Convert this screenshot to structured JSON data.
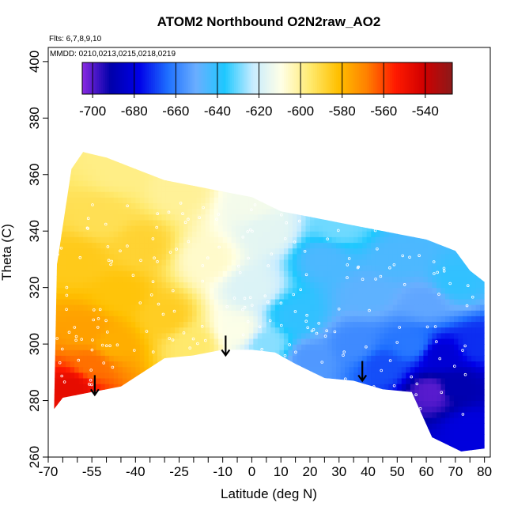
{
  "chart_data": {
    "type": "heatmap",
    "title": "ATOM2 Northbound O2N2raw_AO2",
    "flights_note": "Flts: 6,7,8,9,10",
    "dates_note": "MMDD: 0210,0213,0215,0218,0219",
    "xlabel": "Latitude (deg N)",
    "ylabel": "Theta (C)",
    "xlim": [
      -70,
      82
    ],
    "ylim": [
      260,
      405
    ],
    "x_ticks": [
      -70,
      -55,
      -40,
      -25,
      -10,
      0,
      10,
      20,
      30,
      40,
      50,
      60,
      70,
      80
    ],
    "x_tick_labels": [
      "-70",
      "-55",
      "-40",
      "-25",
      "-10",
      "0",
      "10",
      "20",
      "30",
      "40",
      "50",
      "60",
      "70",
      "80"
    ],
    "x_minor_ticks": [
      -65,
      -60,
      -50,
      -45,
      -35,
      -30,
      -20,
      -15,
      -5,
      5,
      15,
      25,
      35,
      45,
      55,
      65,
      75
    ],
    "y_ticks": [
      260,
      280,
      300,
      320,
      340,
      360,
      380,
      400
    ],
    "y_tick_labels": [
      "260",
      "280",
      "300",
      "320",
      "340",
      "360",
      "380",
      "400"
    ],
    "colorbar": {
      "range": [
        -705,
        -527
      ],
      "ticks": [
        -700,
        -680,
        -660,
        -640,
        -620,
        -600,
        -580,
        -560,
        -540
      ],
      "tick_labels": [
        "-700",
        "-680",
        "-660",
        "-640",
        "-620",
        "-600",
        "-580",
        "-560",
        "-540"
      ],
      "colors": [
        "#8a2be2",
        "#0000aa",
        "#0000e8",
        "#1e6fff",
        "#6aaeff",
        "#1ec8ff",
        "#c8ecff",
        "#ffffe6",
        "#ffea70",
        "#ffc000",
        "#ff8000",
        "#ff1a00",
        "#d00000",
        "#8b1a1a"
      ]
    },
    "field_outline": {
      "top": [
        [
          -67,
          328
        ],
        [
          -62,
          362
        ],
        [
          -58,
          368
        ],
        [
          -50,
          366
        ],
        [
          -40,
          362
        ],
        [
          -30,
          358
        ],
        [
          -20,
          356
        ],
        [
          -10,
          354
        ],
        [
          0,
          352
        ],
        [
          10,
          347
        ],
        [
          20,
          345
        ],
        [
          30,
          343
        ],
        [
          40,
          341
        ],
        [
          50,
          339
        ],
        [
          60,
          337
        ],
        [
          70,
          333
        ],
        [
          75,
          326
        ],
        [
          80,
          322
        ]
      ],
      "bottom": [
        [
          80,
          263
        ],
        [
          72,
          262
        ],
        [
          62,
          267
        ],
        [
          55,
          283
        ],
        [
          45,
          284
        ],
        [
          35,
          287
        ],
        [
          25,
          288
        ],
        [
          15,
          293
        ],
        [
          8,
          297
        ],
        [
          0,
          298
        ],
        [
          -10,
          298
        ],
        [
          -20,
          296
        ],
        [
          -30,
          295
        ],
        [
          -45,
          285
        ],
        [
          -55,
          283
        ],
        [
          -65,
          281
        ],
        [
          -68,
          277
        ]
      ]
    },
    "field_samples": [
      {
        "lat": -62,
        "theta": 285,
        "value": -547
      },
      {
        "lat": -55,
        "theta": 293,
        "value": -566
      },
      {
        "lat": -57,
        "theta": 305,
        "value": -575
      },
      {
        "lat": -48,
        "theta": 300,
        "value": -578
      },
      {
        "lat": -45,
        "theta": 318,
        "value": -583
      },
      {
        "lat": -60,
        "theta": 330,
        "value": -585
      },
      {
        "lat": -52,
        "theta": 345,
        "value": -592
      },
      {
        "lat": -38,
        "theta": 335,
        "value": -588
      },
      {
        "lat": -30,
        "theta": 310,
        "value": -586
      },
      {
        "lat": -20,
        "theta": 300,
        "value": -595
      },
      {
        "lat": -15,
        "theta": 330,
        "value": -606
      },
      {
        "lat": -25,
        "theta": 355,
        "value": -600
      },
      {
        "lat": -5,
        "theta": 305,
        "value": -610
      },
      {
        "lat": 0,
        "theta": 320,
        "value": -618
      },
      {
        "lat": 5,
        "theta": 340,
        "value": -616
      },
      {
        "lat": 5,
        "theta": 300,
        "value": -628
      },
      {
        "lat": 15,
        "theta": 310,
        "value": -640
      },
      {
        "lat": 25,
        "theta": 330,
        "value": -645
      },
      {
        "lat": 20,
        "theta": 295,
        "value": -655
      },
      {
        "lat": 35,
        "theta": 300,
        "value": -658
      },
      {
        "lat": 40,
        "theta": 318,
        "value": -648
      },
      {
        "lat": 50,
        "theta": 330,
        "value": -645
      },
      {
        "lat": 45,
        "theta": 292,
        "value": -668
      },
      {
        "lat": 55,
        "theta": 300,
        "value": -662
      },
      {
        "lat": 60,
        "theta": 315,
        "value": -652
      },
      {
        "lat": 70,
        "theta": 322,
        "value": -640
      },
      {
        "lat": 65,
        "theta": 296,
        "value": -682
      },
      {
        "lat": 62,
        "theta": 283,
        "value": -700
      },
      {
        "lat": 70,
        "theta": 285,
        "value": -690
      },
      {
        "lat": 78,
        "theta": 300,
        "value": -672
      },
      {
        "lat": 75,
        "theta": 270,
        "value": -680
      },
      {
        "lat": 30,
        "theta": 342,
        "value": -630
      },
      {
        "lat": 0,
        "theta": 350,
        "value": -612
      },
      {
        "lat": -45,
        "theta": 362,
        "value": -598
      }
    ],
    "arrows": [
      {
        "lat": -54,
        "theta_top": 289,
        "theta_tip": 282
      },
      {
        "lat": -9,
        "theta_top": 303,
        "theta_tip": 296
      },
      {
        "lat": 38,
        "theta_top": 294,
        "theta_tip": 287
      }
    ]
  }
}
